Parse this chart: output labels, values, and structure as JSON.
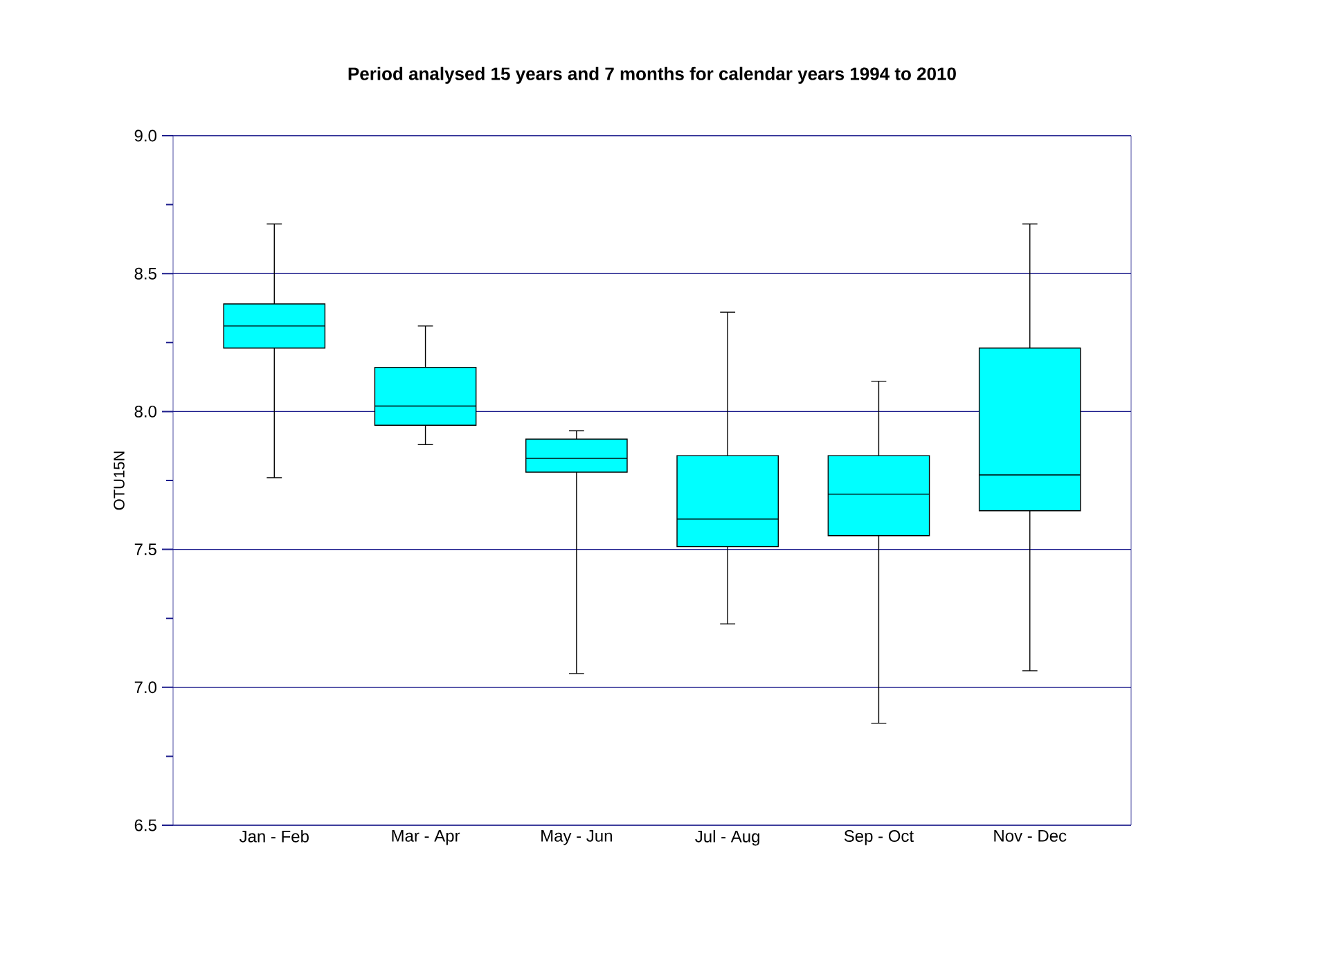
{
  "chart_data": {
    "type": "box",
    "title": "Period analysed 15 years and 7 months for calendar years 1994 to 2010",
    "ylabel": "OTU15N",
    "categories": [
      "Jan - Feb",
      "Mar - Apr",
      "May - Jun",
      "Jul - Aug",
      "Sep - Oct",
      "Nov - Dec"
    ],
    "series": [
      {
        "color": "#00ffff",
        "boxes": [
          {
            "low": 7.76,
            "q1": 8.23,
            "median": 8.31,
            "q3": 8.39,
            "high": 8.68
          },
          {
            "low": 7.88,
            "q1": 7.95,
            "median": 8.02,
            "q3": 8.16,
            "high": 8.31
          },
          {
            "low": 7.05,
            "q1": 7.78,
            "median": 7.83,
            "q3": 7.9,
            "high": 7.93
          },
          {
            "low": 7.23,
            "q1": 7.51,
            "median": 7.61,
            "q3": 7.84,
            "high": 8.36
          },
          {
            "low": 6.87,
            "q1": 7.55,
            "median": 7.7,
            "q3": 7.84,
            "high": 8.11
          },
          {
            "low": 7.06,
            "q1": 7.64,
            "median": 7.77,
            "q3": 8.23,
            "high": 8.68
          }
        ]
      }
    ],
    "ylim": [
      6.5,
      9.0
    ],
    "yticks": [
      {
        "value": 6.5,
        "label": "6.5"
      },
      {
        "value": 6.75,
        "label": null
      },
      {
        "value": 7.0,
        "label": "7.0"
      },
      {
        "value": 7.25,
        "label": null
      },
      {
        "value": 7.5,
        "label": "7.5"
      },
      {
        "value": 7.75,
        "label": null
      },
      {
        "value": 8.0,
        "label": "8.0"
      },
      {
        "value": 8.25,
        "label": null
      },
      {
        "value": 8.5,
        "label": "8.5"
      },
      {
        "value": 8.75,
        "label": null
      },
      {
        "value": 9.0,
        "label": "9.0"
      }
    ],
    "grid": "y"
  }
}
